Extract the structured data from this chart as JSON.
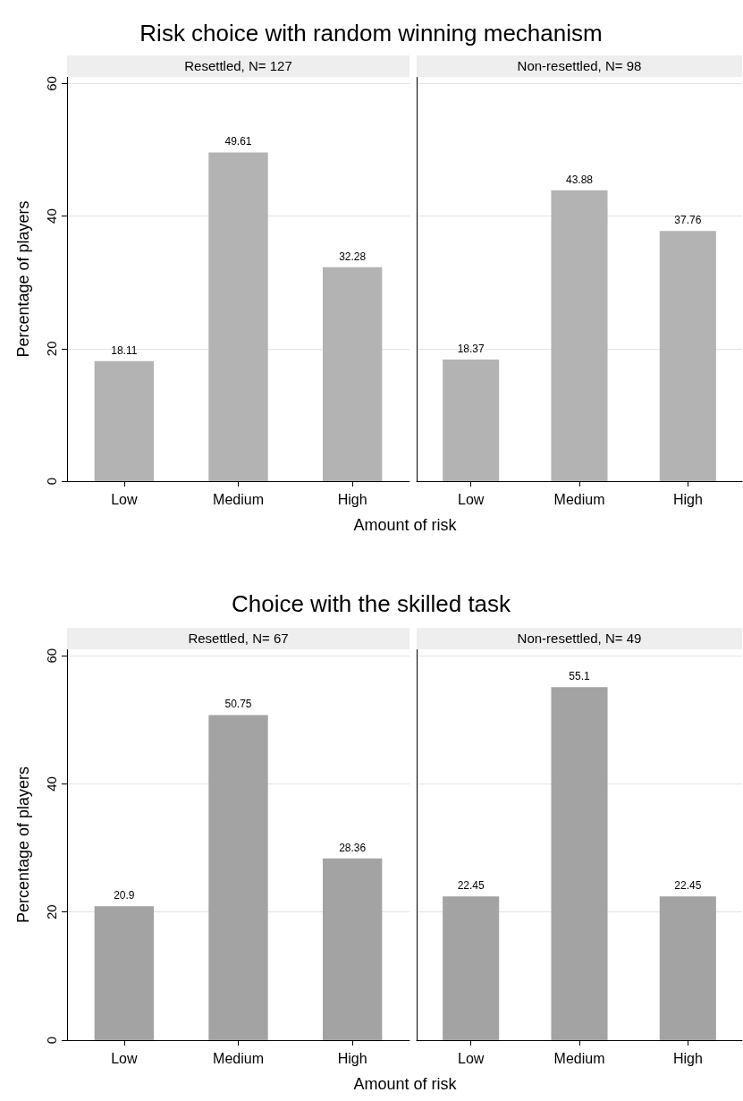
{
  "chart_data": [
    {
      "type": "bar",
      "title": "Risk choice with random winning mechanism",
      "subtitle": "Resettled, N= 127",
      "xlabel": "Amount of risk",
      "ylabel": "Percentage of players",
      "categories": [
        "Low",
        "Medium",
        "High"
      ],
      "values": [
        18.11,
        49.61,
        32.28
      ],
      "color": "#b3b3b3",
      "ylim": [
        0,
        61
      ],
      "yticks": [
        0,
        20,
        40,
        60
      ],
      "grid": "y",
      "data_labels": true
    },
    {
      "type": "bar",
      "subtitle": "Non-resettled, N= 98",
      "categories": [
        "Low",
        "Medium",
        "High"
      ],
      "values": [
        18.37,
        43.88,
        37.76
      ],
      "color": "#b3b3b3",
      "ylim": [
        0,
        61
      ],
      "yticks": [
        0,
        20,
        40,
        60
      ],
      "grid": "y",
      "data_labels": true,
      "tick_labels": "x"
    },
    {
      "type": "bar",
      "title": "Choice with the skilled task",
      "subtitle": "Resettled, N= 67",
      "xlabel": "Amount of risk",
      "ylabel": "Percentage of players",
      "categories": [
        "Low",
        "Medium",
        "High"
      ],
      "values": [
        20.9,
        50.75,
        28.36
      ],
      "color": "#a3a3a3",
      "ylim": [
        0,
        61
      ],
      "yticks": [
        0,
        20,
        40,
        60
      ],
      "grid": "y",
      "data_labels": true
    },
    {
      "type": "bar",
      "subtitle": "Non-resettled, N= 49",
      "categories": [
        "Low",
        "Medium",
        "High"
      ],
      "values": [
        22.45,
        55.1,
        22.45
      ],
      "color": "#a3a3a3",
      "ylim": [
        0,
        61
      ],
      "yticks": [
        0,
        20,
        40,
        60
      ],
      "grid": "y",
      "data_labels": true,
      "tick_labels": "x"
    }
  ]
}
